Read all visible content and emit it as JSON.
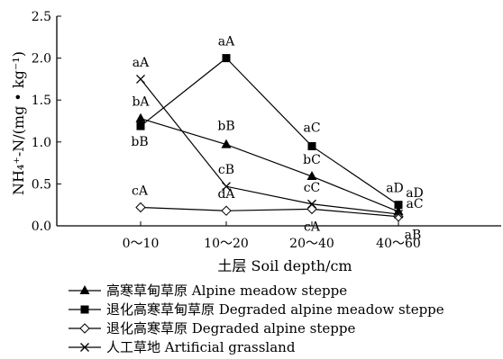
{
  "chart_data": {
    "type": "line",
    "title": "",
    "xlabel": "土层 Soil depth/cm",
    "ylabel": "NH₄⁺-N/(mg • kg⁻¹)",
    "categories": [
      "0～10",
      "10～20",
      "20～40",
      "40～60"
    ],
    "ylim": [
      0,
      2.5
    ],
    "yticks": [
      "0.0",
      "0.5",
      "1.0",
      "1.5",
      "2.0",
      "2.5"
    ],
    "grid": false,
    "legend_position": "bottom",
    "series": [
      {
        "name": "高寒草甸草原 Alpine meadow steppe",
        "marker": "triangle",
        "values": [
          1.28,
          0.97,
          0.59,
          0.17
        ],
        "labels": [
          "bA",
          "bB",
          "bC",
          "aC"
        ]
      },
      {
        "name": "退化高寒草甸草原 Degraded alpine meadow steppe",
        "marker": "square",
        "values": [
          1.19,
          2.0,
          0.95,
          0.25
        ],
        "labels": [
          "bB",
          "aA",
          "aC",
          "aD"
        ]
      },
      {
        "name": "退化高寒草原 Degraded alpine steppe",
        "marker": "diamond",
        "values": [
          0.22,
          0.18,
          0.2,
          0.11
        ],
        "labels": [
          "cA",
          "dA",
          "cA",
          "aB"
        ]
      },
      {
        "name": "人工草地 Artificial grassland",
        "marker": "cross",
        "values": [
          1.75,
          0.47,
          0.26,
          0.14
        ],
        "labels": [
          "aA",
          "cB",
          "cC",
          "aD"
        ]
      }
    ]
  }
}
